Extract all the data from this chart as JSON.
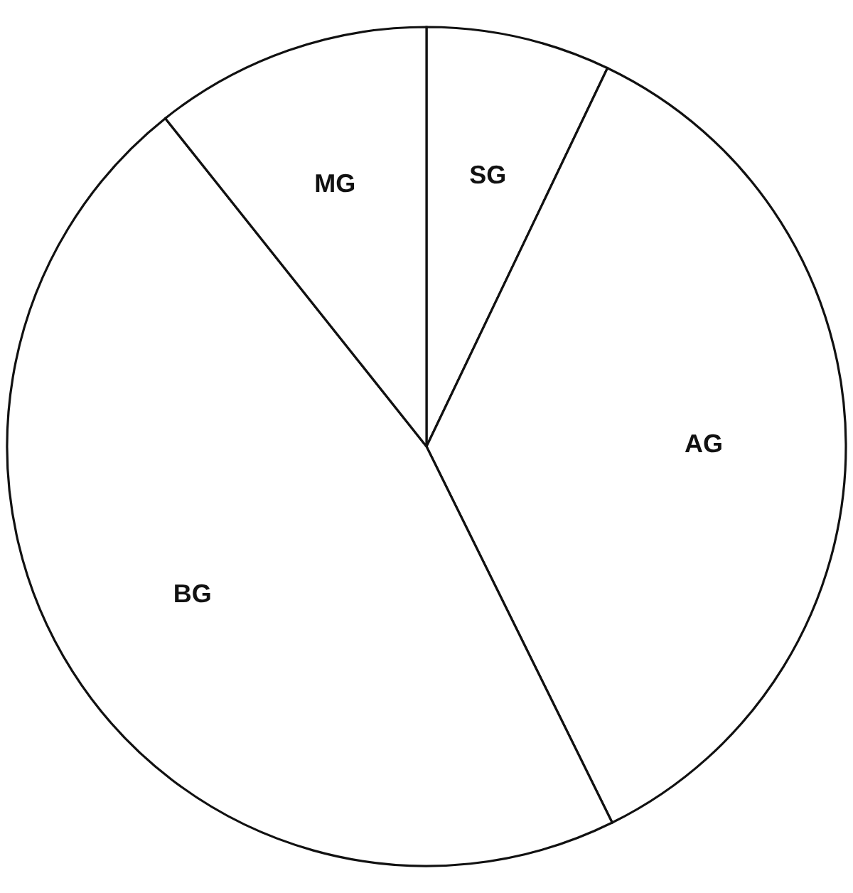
{
  "chart_data": {
    "type": "pie",
    "categories": [
      "SG",
      "AG",
      "BG",
      "MG"
    ],
    "values": [
      7.1,
      35.6,
      46.6,
      10.7
    ],
    "colors": [
      "#ffffff",
      "#ffffff",
      "#ffffff",
      "#ffffff"
    ]
  }
}
